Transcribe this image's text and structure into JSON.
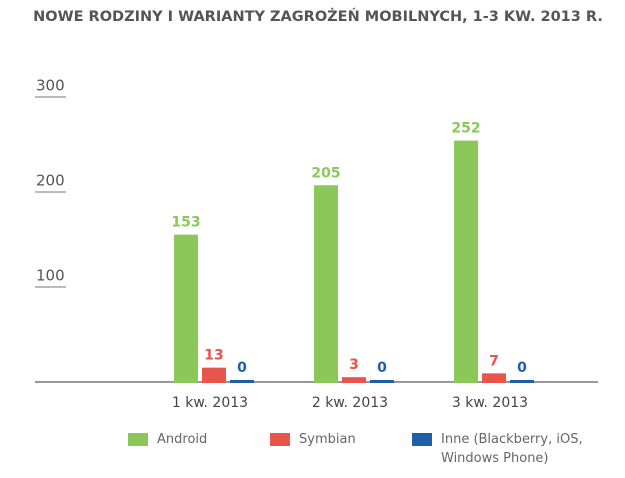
{
  "chart_data": {
    "type": "bar",
    "title": "NOWE RODZINY I WARIANTY ZAGROŻEŃ MOBILNYCH, 1-3 KW. 2013 R.",
    "categories": [
      "1 kw. 2013",
      "2 kw. 2013",
      "3 kw. 2013"
    ],
    "series": [
      {
        "name": "Android",
        "color": "#8cc859",
        "values": [
          153,
          205,
          252
        ]
      },
      {
        "name": "Symbian",
        "color": "#e8554a",
        "values": [
          13,
          3,
          7
        ]
      },
      {
        "name": "Inne (Blackberry, iOS, Windows Phone)",
        "color": "#1f5fa6",
        "values": [
          0,
          0,
          0
        ]
      }
    ],
    "ylim": [
      0,
      300
    ],
    "yticks": [
      100,
      200,
      300
    ],
    "grid": false
  }
}
